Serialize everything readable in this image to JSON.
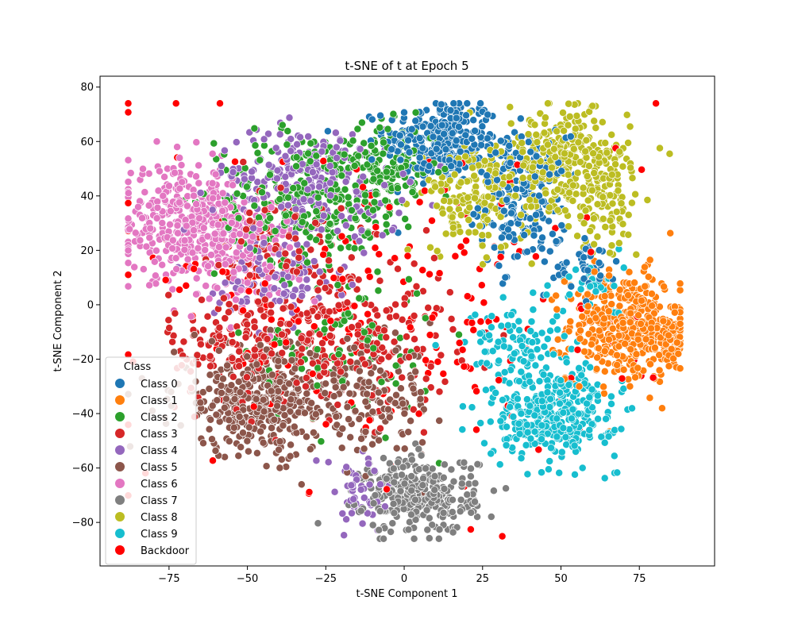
{
  "chart_data": {
    "type": "scatter",
    "title": "t-SNE of t at Epoch 5",
    "xlabel": "t-SNE Component 1",
    "ylabel": "t-SNE Component 2",
    "xlim": [
      -97,
      99
    ],
    "ylim": [
      -96,
      84
    ],
    "xticks": [
      -75,
      -50,
      -25,
      0,
      25,
      50,
      75
    ],
    "yticks": [
      -80,
      -60,
      -40,
      -20,
      0,
      20,
      40,
      60,
      80
    ],
    "grid": false,
    "legend": {
      "title": "Class",
      "placement": "lower-left"
    },
    "series": [
      {
        "name": "Class 0",
        "color": "#1f77b4",
        "clusters": [
          {
            "cx": 12,
            "cy": 60,
            "sx": 9,
            "sy": 8,
            "n": 300
          },
          {
            "cx": 38,
            "cy": 38,
            "sx": 7,
            "sy": 12,
            "n": 200
          },
          {
            "cx": 58,
            "cy": 15,
            "sx": 5,
            "sy": 5,
            "n": 40
          }
        ]
      },
      {
        "name": "Class 1",
        "color": "#ff7f0e",
        "clusters": [
          {
            "cx": 70,
            "cy": -8,
            "sx": 9,
            "sy": 10,
            "n": 380
          },
          {
            "cx": 84,
            "cy": -14,
            "sx": 3,
            "sy": 5,
            "n": 80
          }
        ]
      },
      {
        "name": "Class 2",
        "color": "#2ca02c",
        "clusters": [
          {
            "cx": -30,
            "cy": 40,
            "sx": 15,
            "sy": 12,
            "n": 260
          },
          {
            "cx": -5,
            "cy": 50,
            "sx": 8,
            "sy": 8,
            "n": 140
          },
          {
            "cx": -20,
            "cy": -15,
            "sx": 15,
            "sy": 15,
            "n": 100
          }
        ]
      },
      {
        "name": "Class 3",
        "color": "#d62728",
        "clusters": [
          {
            "cx": -20,
            "cy": -10,
            "sx": 18,
            "sy": 15,
            "n": 280
          },
          {
            "cx": -55,
            "cy": -15,
            "sx": 10,
            "sy": 10,
            "n": 120
          },
          {
            "cx": -40,
            "cy": 25,
            "sx": 10,
            "sy": 10,
            "n": 80
          }
        ]
      },
      {
        "name": "Class 4",
        "color": "#9467bd",
        "clusters": [
          {
            "cx": -30,
            "cy": 45,
            "sx": 15,
            "sy": 10,
            "n": 280
          },
          {
            "cx": -40,
            "cy": 10,
            "sx": 10,
            "sy": 8,
            "n": 100
          },
          {
            "cx": -15,
            "cy": -70,
            "sx": 6,
            "sy": 8,
            "n": 50
          }
        ]
      },
      {
        "name": "Class 5",
        "color": "#8c564b",
        "clusters": [
          {
            "cx": -45,
            "cy": -35,
            "sx": 14,
            "sy": 10,
            "n": 400
          },
          {
            "cx": -10,
            "cy": -35,
            "sx": 10,
            "sy": 10,
            "n": 140
          }
        ]
      },
      {
        "name": "Class 6",
        "color": "#e377c2",
        "clusters": [
          {
            "cx": -70,
            "cy": 30,
            "sx": 10,
            "sy": 10,
            "n": 360
          },
          {
            "cx": -52,
            "cy": 20,
            "sx": 9,
            "sy": 9,
            "n": 140
          }
        ]
      },
      {
        "name": "Class 7",
        "color": "#7f7f7f",
        "clusters": [
          {
            "cx": 5,
            "cy": -70,
            "sx": 9,
            "sy": 7,
            "n": 320
          }
        ]
      },
      {
        "name": "Class 8",
        "color": "#bcbd22",
        "clusters": [
          {
            "cx": 52,
            "cy": 52,
            "sx": 10,
            "sy": 10,
            "n": 320
          },
          {
            "cx": 22,
            "cy": 40,
            "sx": 8,
            "sy": 10,
            "n": 160
          },
          {
            "cx": 65,
            "cy": 35,
            "sx": 5,
            "sy": 8,
            "n": 60
          }
        ]
      },
      {
        "name": "Class 9",
        "color": "#17becf",
        "clusters": [
          {
            "cx": 48,
            "cy": -40,
            "sx": 10,
            "sy": 8,
            "n": 340
          },
          {
            "cx": 35,
            "cy": -15,
            "sx": 8,
            "sy": 8,
            "n": 100
          },
          {
            "cx": 60,
            "cy": 5,
            "sx": 5,
            "sy": 6,
            "n": 40
          }
        ]
      },
      {
        "name": "Backdoor",
        "color": "#ff0000",
        "clusters": [
          {
            "cx": 0,
            "cy": 0,
            "sx": 40,
            "sy": 35,
            "n": 220
          }
        ]
      }
    ]
  }
}
